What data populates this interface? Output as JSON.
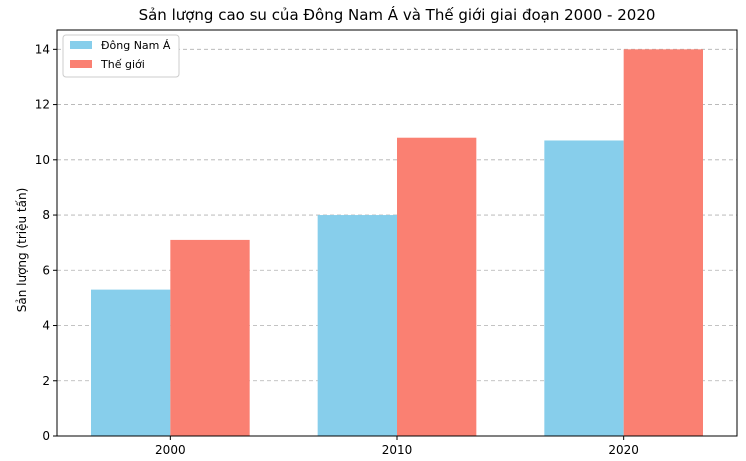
{
  "chart_data": {
    "type": "bar",
    "title": "Sản lượng cao su của Đông Nam Á và Thế giới giai đoạn 2000 - 2020",
    "xlabel": "",
    "ylabel": "Sản lượng (triệu tấn)",
    "categories": [
      "2000",
      "2010",
      "2020"
    ],
    "series": [
      {
        "name": "Đông Nam Á",
        "values": [
          5.3,
          8.0,
          10.7
        ],
        "color": "#87CEEB"
      },
      {
        "name": "Thế giới",
        "values": [
          7.1,
          10.8,
          14.0
        ],
        "color": "#FA8072"
      }
    ],
    "ylim": [
      0,
      14.7
    ],
    "yticks": [
      0,
      2,
      4,
      6,
      8,
      10,
      12,
      14
    ],
    "grid": "y-dashed",
    "legend_position": "top-left"
  }
}
